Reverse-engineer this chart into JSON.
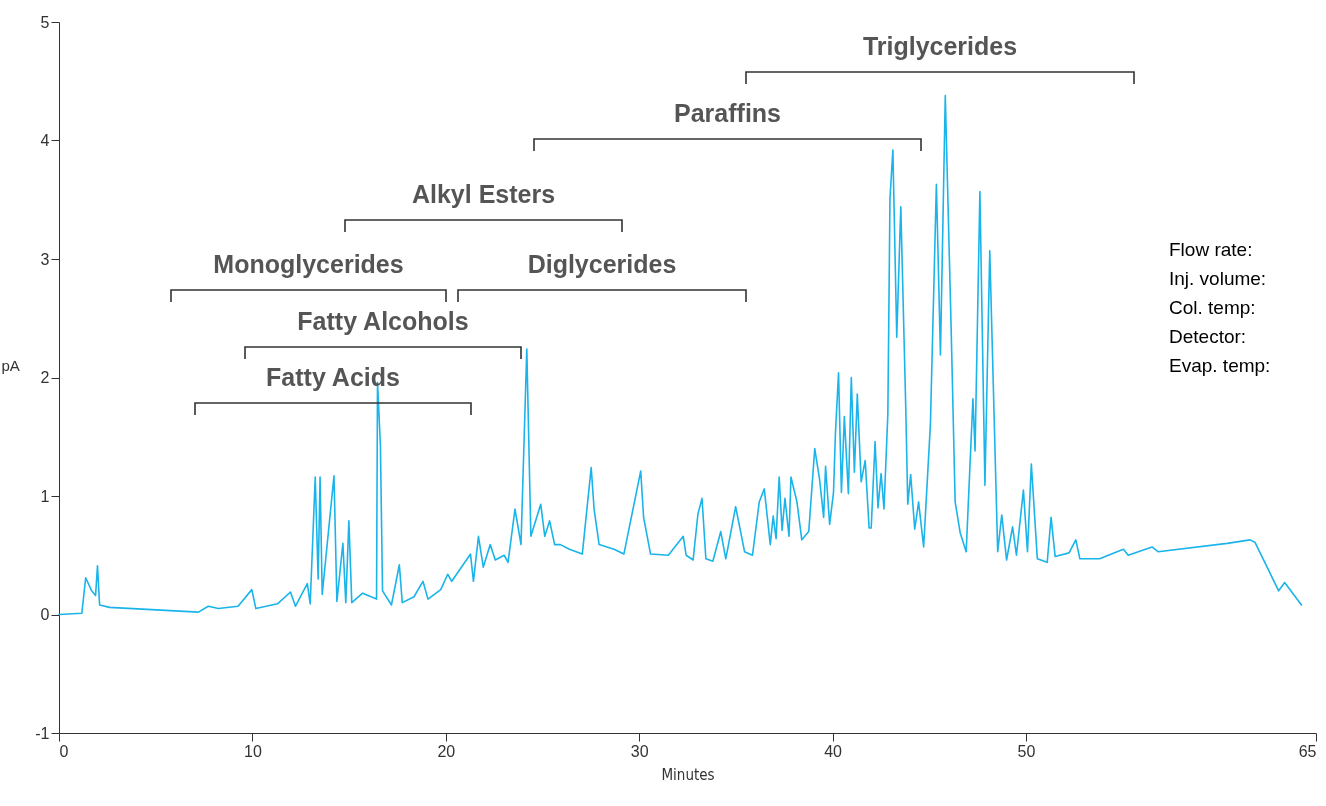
{
  "chart_data": {
    "type": "line",
    "xlabel": "Minutes",
    "ylabel": "pA",
    "xlim": [
      0,
      65
    ],
    "xticks": [
      0,
      10,
      20,
      30,
      40,
      50,
      65
    ],
    "ylim": [
      -1,
      5
    ],
    "yticks": [
      -1,
      0,
      1,
      2,
      3,
      4,
      5
    ],
    "grid": false,
    "marker": "none",
    "line_style": "solid",
    "series": [
      {
        "color": "#1ab4ea",
        "x": [
          0,
          1.18,
          1.38,
          1.69,
          1.89,
          1.99,
          2.1,
          2.61,
          7.21,
          7.72,
          8.24,
          9.26,
          9.97,
          10.18,
          11.3,
          11.97,
          12.23,
          12.84,
          12.99,
          13.25,
          13.4,
          13.5,
          13.61,
          14.22,
          14.37,
          14.68,
          14.83,
          14.99,
          15.14,
          15.7,
          16.42,
          16.47,
          16.62,
          16.73,
          17.19,
          17.6,
          17.75,
          18.36,
          18.82,
          19.08,
          19.74,
          20.1,
          20.31,
          21.28,
          21.43,
          21.69,
          21.94,
          22.3,
          22.56,
          23.02,
          23.22,
          23.58,
          23.89,
          24.19,
          24.4,
          24.91,
          25.12,
          25.37,
          25.63,
          25.93,
          26.39,
          27.06,
          27.52,
          27.67,
          27.93,
          28.7,
          29.21,
          30.08,
          30.23,
          30.59,
          31.51,
          32.28,
          32.43,
          32.79,
          33.04,
          33.25,
          33.45,
          33.81,
          34.22,
          34.48,
          34.99,
          35.45,
          35.86,
          36.21,
          36.47,
          36.78,
          36.93,
          37.08,
          37.24,
          37.39,
          37.54,
          37.75,
          37.85,
          38.16,
          38.41,
          38.77,
          39.08,
          39.33,
          39.54,
          39.64,
          39.85,
          40.05,
          40.15,
          40.31,
          40.46,
          40.61,
          40.82,
          40.97,
          41.13,
          41.28,
          41.48,
          41.69,
          41.89,
          42.0,
          42.2,
          42.35,
          42.51,
          42.66,
          42.86,
          42.97,
          43.12,
          43.32,
          43.53,
          43.79,
          43.89,
          44.04,
          44.25,
          44.45,
          44.71,
          45.06,
          45.37,
          45.58,
          45.83,
          46.14,
          46.34,
          46.6,
          46.91,
          47.26,
          47.37,
          47.62,
          47.88,
          48.13,
          48.54,
          48.75,
          49.0,
          49.31,
          49.51,
          49.87,
          50.08,
          50.28,
          50.59,
          51.1,
          51.3,
          51.51,
          52.23,
          52.58,
          52.79,
          53.81,
          55.04,
          55.29,
          56.52,
          56.83,
          60.41,
          61.59,
          61.84,
          63.07,
          63.38,
          64.25
        ],
        "values": [
          0,
          0.01,
          0.31,
          0.2,
          0.16,
          0.41,
          0.08,
          0.06,
          0.02,
          0.07,
          0.05,
          0.07,
          0.21,
          0.05,
          0.09,
          0.19,
          0.07,
          0.26,
          0.09,
          1.16,
          0.3,
          1.16,
          0.17,
          1.17,
          0.11,
          0.6,
          0.1,
          0.79,
          0.1,
          0.18,
          0.13,
          1.96,
          1.43,
          0.2,
          0.08,
          0.42,
          0.1,
          0.15,
          0.28,
          0.13,
          0.21,
          0.34,
          0.28,
          0.51,
          0.28,
          0.66,
          0.4,
          0.59,
          0.46,
          0.5,
          0.44,
          0.89,
          0.59,
          2.24,
          0.66,
          0.93,
          0.66,
          0.79,
          0.59,
          0.59,
          0.55,
          0.51,
          1.24,
          0.89,
          0.59,
          0.55,
          0.51,
          1.21,
          0.82,
          0.51,
          0.5,
          0.66,
          0.5,
          0.46,
          0.85,
          0.98,
          0.47,
          0.45,
          0.7,
          0.47,
          0.91,
          0.53,
          0.5,
          0.95,
          1.06,
          0.59,
          0.83,
          0.64,
          1.16,
          0.71,
          0.98,
          0.66,
          1.16,
          0.95,
          0.63,
          0.7,
          1.4,
          1.14,
          0.82,
          1.25,
          0.76,
          1.03,
          1.53,
          2.04,
          1.03,
          1.67,
          1.02,
          2.0,
          1.2,
          1.86,
          1.12,
          1.3,
          0.73,
          0.73,
          1.46,
          0.9,
          1.19,
          0.89,
          1.69,
          3.51,
          3.92,
          2.34,
          3.44,
          1.72,
          0.93,
          1.18,
          0.72,
          0.95,
          0.57,
          1.6,
          3.63,
          2.19,
          4.38,
          2.37,
          0.95,
          0.69,
          0.53,
          1.82,
          1.38,
          3.57,
          1.09,
          3.07,
          0.53,
          0.84,
          0.46,
          0.74,
          0.5,
          1.05,
          0.53,
          1.27,
          0.47,
          0.44,
          0.82,
          0.49,
          0.52,
          0.63,
          0.47,
          0.47,
          0.55,
          0.5,
          0.57,
          0.53,
          0.6,
          0.63,
          0.61,
          0.2,
          0.27,
          0.08
        ]
      }
    ],
    "annotations": [
      "Triglycerides",
      "Paraffins",
      "Alkyl Esters",
      "Monoglycerides",
      "Diglycerides",
      "Fatty Alcohols",
      "Fatty Acids",
      "Flow rate:",
      "Inj. volume:",
      "Col. temp:",
      "Detector:",
      "Evap. temp:"
    ]
  }
}
